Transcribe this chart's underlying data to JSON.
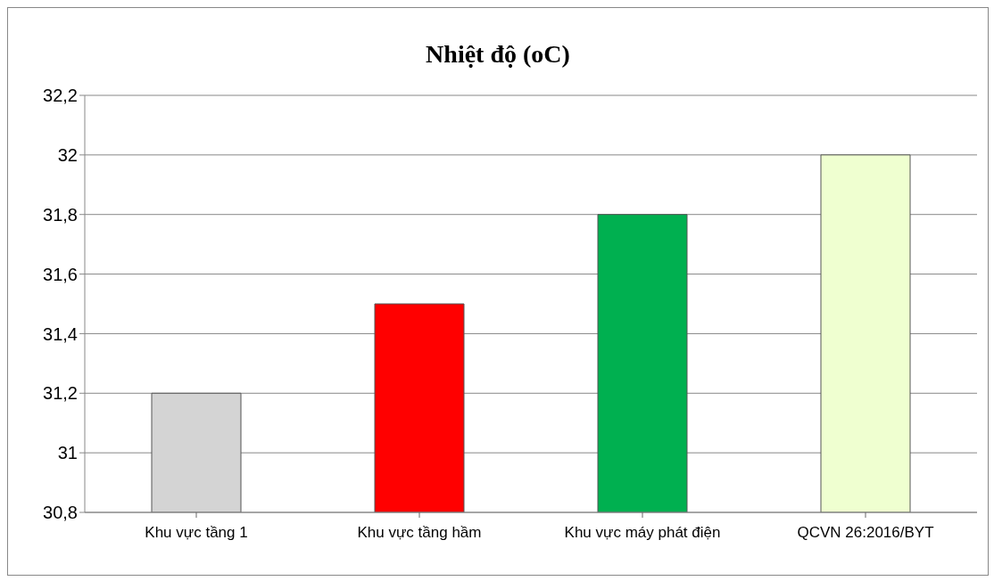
{
  "chart_data": {
    "type": "bar",
    "title": "Nhiệt độ (oC)",
    "categories": [
      "Khu vực tầng 1",
      "Khu vực tầng hầm",
      "Khu vực máy phát điện",
      "QCVN 26:2016/BYT"
    ],
    "values": [
      31.2,
      31.5,
      31.8,
      32
    ],
    "colors": [
      "#d4d4d4",
      "#ff0000",
      "#00b050",
      "#efffd0"
    ],
    "ylim": [
      30.8,
      32.2
    ],
    "yticks": [
      {
        "value": 30.8,
        "label": "30,8"
      },
      {
        "value": 31,
        "label": "31"
      },
      {
        "value": 31.2,
        "label": "31,2"
      },
      {
        "value": 31.4,
        "label": "31,4"
      },
      {
        "value": 31.6,
        "label": "31,6"
      },
      {
        "value": 31.8,
        "label": "31,8"
      },
      {
        "value": 32,
        "label": "32"
      },
      {
        "value": 32.2,
        "label": "32,2"
      }
    ],
    "grid": "y",
    "legend": false
  }
}
